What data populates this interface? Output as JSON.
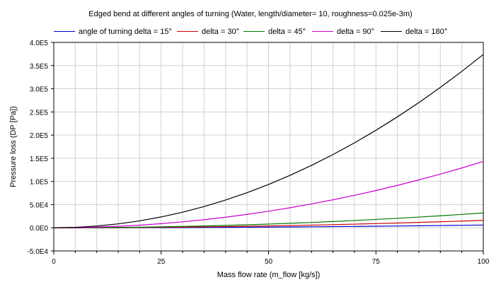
{
  "chart_data": {
    "type": "line",
    "title": "Edged bend at different angles of turning (Water, length/diameter= 10, roughness=0.025e-3m)",
    "xlabel": "Mass flow rate (m_flow [kg/s])",
    "ylabel": "Pressure loss (DP [Pa])",
    "xlim": [
      0,
      100
    ],
    "ylim": [
      -50000,
      400000
    ],
    "xticks": [
      "0",
      "25",
      "50",
      "75",
      "100"
    ],
    "yticks": [
      {
        "value": 400000,
        "label": "4.0E5"
      },
      {
        "value": 350000,
        "label": "3.5E5"
      },
      {
        "value": 300000,
        "label": "3.0E5"
      },
      {
        "value": 250000,
        "label": "2.5E5"
      },
      {
        "value": 200000,
        "label": "2.0E5"
      },
      {
        "value": 150000,
        "label": "1.5E5"
      },
      {
        "value": 100000,
        "label": "1.0E5"
      },
      {
        "value": 50000,
        "label": "5.0E4"
      },
      {
        "value": 0,
        "label": "0.0E0"
      },
      {
        "value": -50000,
        "label": "-5.0E4"
      }
    ],
    "grid": true,
    "legend_position": "top",
    "x": [
      0,
      5,
      10,
      15,
      20,
      25,
      30,
      35,
      40,
      45,
      50,
      55,
      60,
      65,
      70,
      75,
      80,
      85,
      90,
      95,
      100
    ],
    "series": [
      {
        "name": "angle of turning delta = 15°",
        "color": "#0000cc",
        "values": [
          0,
          15,
          60,
          135,
          240,
          375,
          540,
          735,
          960,
          1215,
          1500,
          1815,
          2160,
          2535,
          2940,
          3375,
          3840,
          4335,
          4860,
          5415,
          6000
        ]
      },
      {
        "name": "delta = 30°",
        "color": "#cc0000",
        "values": [
          0,
          40,
          160,
          360,
          640,
          1000,
          1440,
          1960,
          2560,
          3240,
          4000,
          4840,
          5760,
          6760,
          7840,
          9000,
          10240,
          11560,
          12960,
          14440,
          16000
        ]
      },
      {
        "name": "delta = 45°",
        "color": "#007700",
        "values": [
          0,
          80,
          320,
          720,
          1280,
          2000,
          2880,
          3920,
          5120,
          6480,
          8000,
          9680,
          11520,
          13520,
          15680,
          18000,
          20480,
          23120,
          25920,
          28880,
          32000
        ]
      },
      {
        "name": "delta = 90°",
        "color": "#cc00cc",
        "values": [
          0,
          358,
          1430,
          3218,
          5720,
          8938,
          12870,
          17518,
          22880,
          28958,
          35750,
          43258,
          51480,
          60418,
          70070,
          80438,
          91520,
          103318,
          115830,
          129058,
          143000
        ]
      },
      {
        "name": "delta = 180°",
        "color": "#000000",
        "values": [
          0,
          935,
          3740,
          8415,
          14960,
          23375,
          33660,
          45815,
          59840,
          75735,
          93500,
          113135,
          134640,
          158015,
          183260,
          210375,
          239360,
          270215,
          302940,
          337535,
          374000
        ]
      }
    ]
  }
}
